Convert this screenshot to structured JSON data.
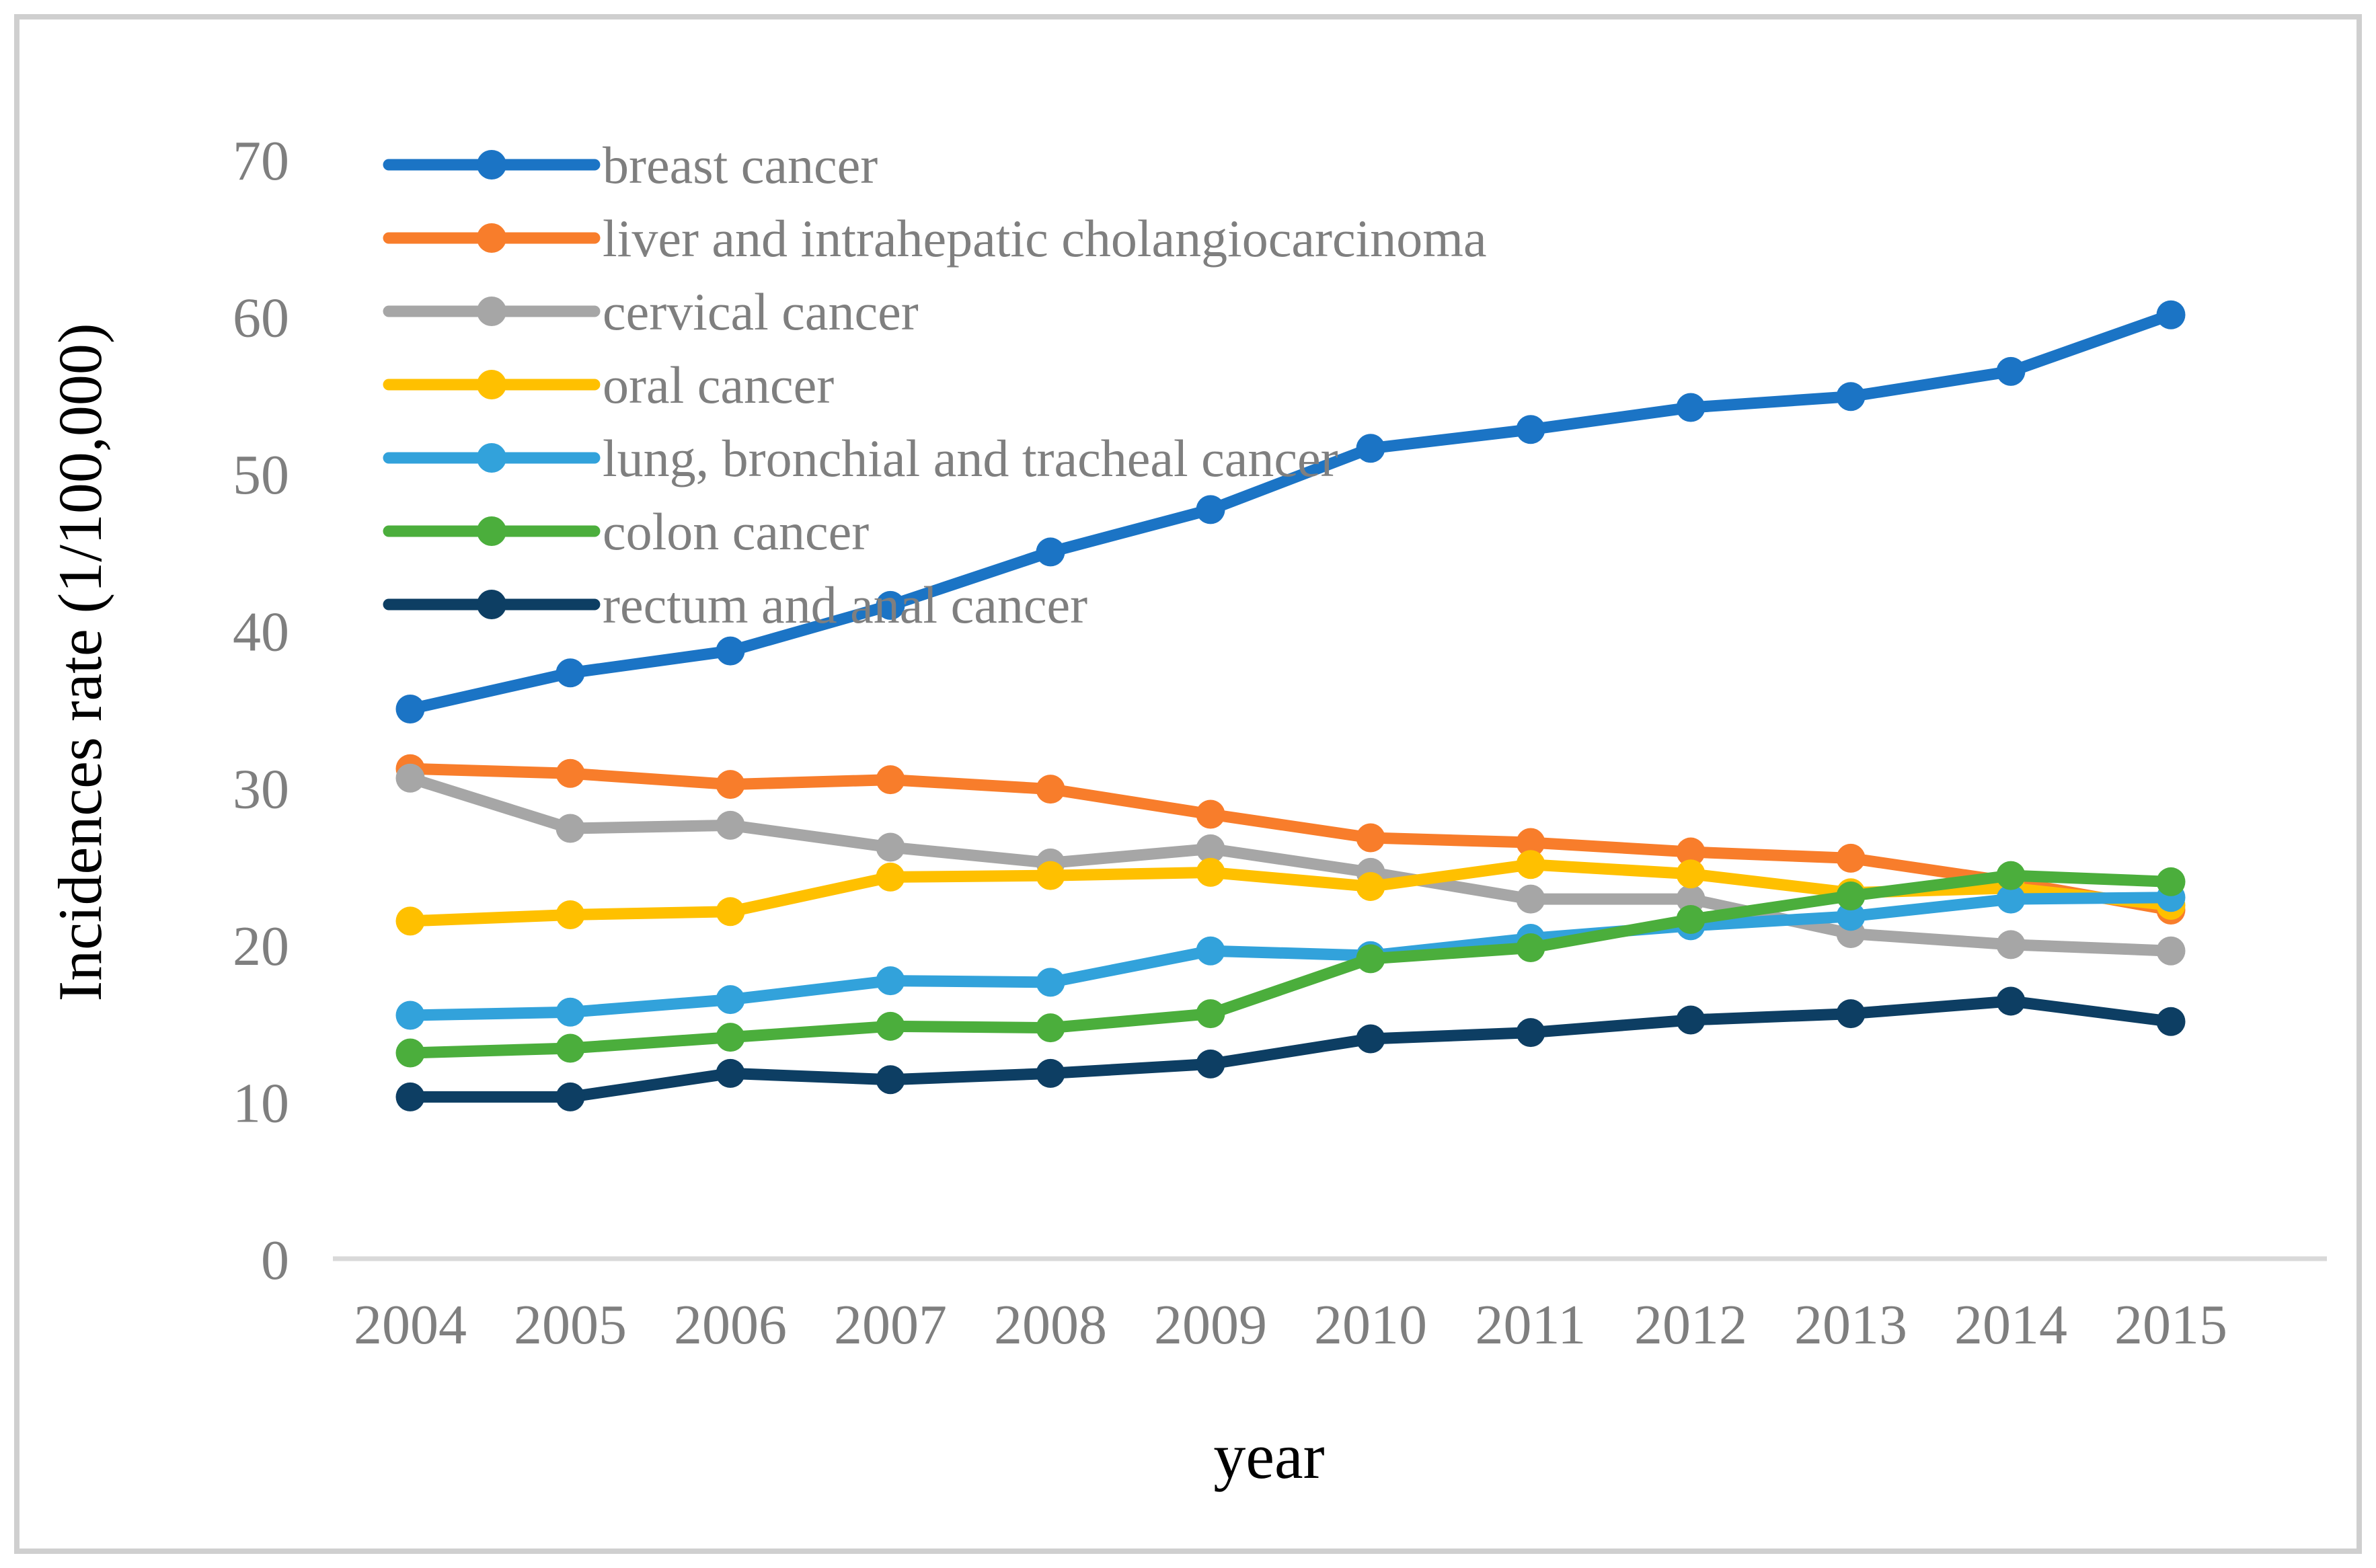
{
  "figure": {
    "background": "#FFFFFF",
    "border_color": "#CFCFCF"
  },
  "chart_data": {
    "type": "line",
    "title": "",
    "xlabel": "year",
    "ylabel": "Incidences rate (1/100,000)",
    "x": [
      2004,
      2005,
      2006,
      2007,
      2008,
      2009,
      2010,
      2011,
      2012,
      2013,
      2014,
      2015
    ],
    "y_ticks": [
      0,
      10,
      20,
      30,
      40,
      50,
      60,
      70
    ],
    "ylim": [
      0,
      75
    ],
    "grid": false,
    "legend_position": "top-left-inside",
    "tick_text_color": "#7F7F7F",
    "legend_text_color": "#7F7F7F",
    "axis_title_color": "#000000",
    "axis_line_color": "#D9D9D9",
    "marker_style": "circle-on-line",
    "series": [
      {
        "name": "breast cancer",
        "color": "#1B74C5",
        "values": [
          35.0,
          37.3,
          38.7,
          41.6,
          45.0,
          47.7,
          51.6,
          52.8,
          54.2,
          54.9,
          56.5,
          60.1
        ]
      },
      {
        "name": "liver and intrahepatic cholangiocarcinoma",
        "color": "#F87D2B",
        "values": [
          31.2,
          30.9,
          30.2,
          30.5,
          29.9,
          28.3,
          26.8,
          26.5,
          25.9,
          25.5,
          24.0,
          22.2
        ]
      },
      {
        "name": "cervical cancer",
        "color": "#A6A6A6",
        "values": [
          30.6,
          27.4,
          27.6,
          26.2,
          25.2,
          26.1,
          24.6,
          22.9,
          22.9,
          20.7,
          20.0,
          19.6
        ]
      },
      {
        "name": "oral cancer",
        "color": "#FFC000",
        "values": [
          21.5,
          21.9,
          22.1,
          24.3,
          24.4,
          24.6,
          23.7,
          25.1,
          24.5,
          23.3,
          23.6,
          22.5
        ]
      },
      {
        "name": "lung, bronchial and tracheal cancer",
        "color": "#32A2DB",
        "values": [
          15.5,
          15.7,
          16.5,
          17.7,
          17.6,
          19.6,
          19.3,
          20.4,
          21.2,
          21.8,
          22.9,
          23.0
        ]
      },
      {
        "name": "colon cancer",
        "color": "#4BAE3C",
        "values": [
          13.1,
          13.4,
          14.1,
          14.8,
          14.7,
          15.6,
          19.1,
          19.8,
          21.6,
          23.1,
          24.4,
          24.0
        ]
      },
      {
        "name": "rectum and anal cancer",
        "color": "#0D3E63",
        "values": [
          10.3,
          10.3,
          11.8,
          11.4,
          11.8,
          12.4,
          14.0,
          14.4,
          15.2,
          15.6,
          16.4,
          15.1
        ]
      }
    ]
  }
}
